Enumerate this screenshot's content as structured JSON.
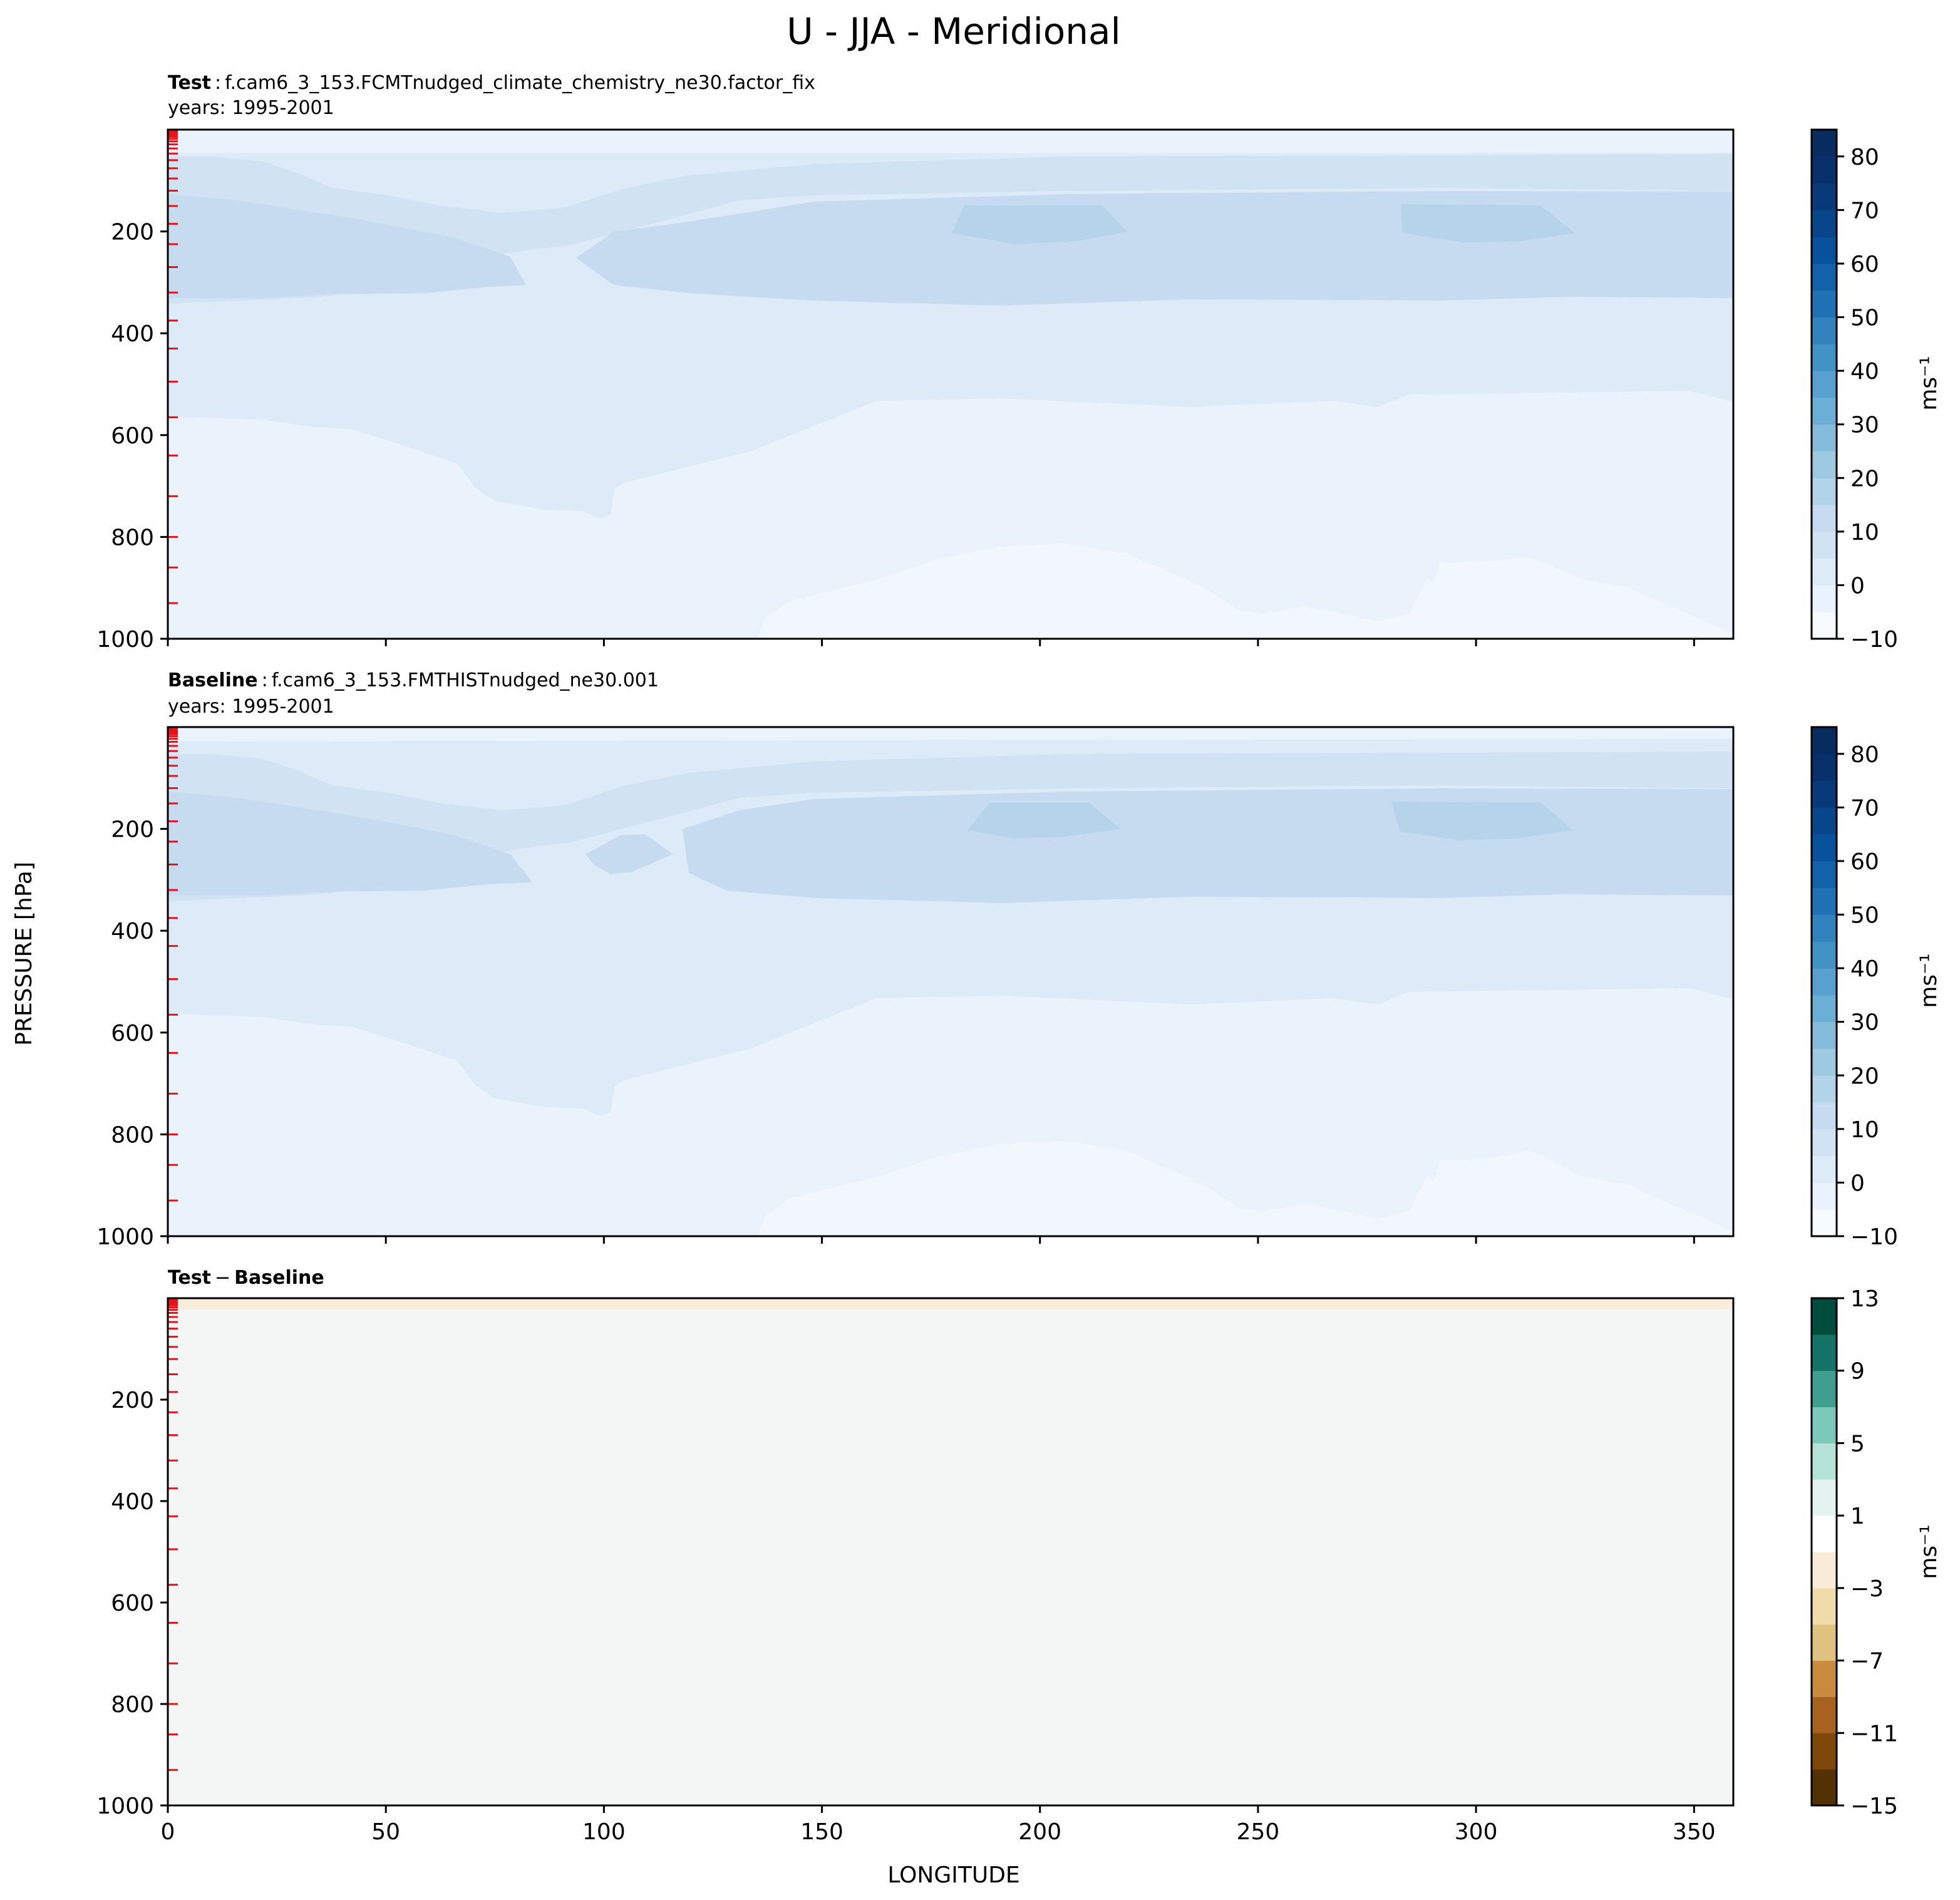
{
  "figure": {
    "title": "U - JJA - Meridional",
    "ylabel": "PRESSURE [hPa]",
    "xlabel": "LONGITUDE"
  },
  "panels": [
    {
      "label_bold": "Test",
      "label_sep": ":",
      "label_rest": "f.cam6_3_153.FCMTnudged_climate_chemistry_ne30.factor_fix",
      "years": "years: 1995-2001",
      "colorbar_unit": "ms⁻¹",
      "colorbar_ticks": [
        "80",
        "70",
        "60",
        "50",
        "40",
        "30",
        "20",
        "10",
        "0",
        "−10"
      ]
    },
    {
      "label_bold": "Baseline",
      "label_sep": ":",
      "label_rest": "f.cam6_3_153.FMTHISTnudged_ne30.001",
      "years": "years: 1995-2001",
      "colorbar_unit": "ms⁻¹",
      "colorbar_ticks": [
        "80",
        "70",
        "60",
        "50",
        "40",
        "30",
        "20",
        "10",
        "0",
        "−10"
      ]
    },
    {
      "label_bold": "Test",
      "label_sep": "−",
      "label_rest": "Baseline",
      "colorbar_unit": "ms⁻¹",
      "colorbar_ticks": [
        "13",
        "9",
        "5",
        "1",
        "−3",
        "−7",
        "−11",
        "−15"
      ]
    }
  ],
  "chart_data": [
    {
      "type": "heatmap",
      "title": "Test : f.cam6_3_153.FCMTnudged_climate_chemistry_ne30.factor_fix",
      "xlim": [
        0,
        359
      ],
      "ylim": [
        1000,
        0
      ],
      "xticks": [
        "0",
        "50",
        "100",
        "150",
        "200",
        "250",
        "300",
        "350"
      ],
      "yticks": [
        "200",
        "400",
        "600",
        "800",
        "1000"
      ],
      "colorbar": {
        "levels": [
          -10,
          -5,
          0,
          5,
          10,
          15,
          20,
          25,
          30,
          35,
          40,
          45,
          50,
          55,
          60,
          65,
          70,
          75,
          80,
          85
        ]
      },
      "colors": {
        "c0": "#eaf2fb",
        "c5": "#ddeaf7",
        "c10": "#d1e2f3",
        "c15": "#c6dbef",
        "c20": "#b6d4e9"
      }
    },
    {
      "type": "heatmap",
      "title": "Baseline : f.cam6_3_153.FMTHISTnudged_ne30.001",
      "xlim": [
        0,
        359
      ],
      "ylim": [
        1000,
        0
      ],
      "xticks": [
        "0",
        "50",
        "100",
        "150",
        "200",
        "250",
        "300",
        "350"
      ],
      "yticks": [
        "200",
        "400",
        "600",
        "800",
        "1000"
      ],
      "colorbar": {
        "levels": [
          -10,
          -5,
          0,
          5,
          10,
          15,
          20,
          25,
          30,
          35,
          40,
          45,
          50,
          55,
          60,
          65,
          70,
          75,
          80,
          85
        ]
      },
      "colors": {
        "c0": "#eaf2fb",
        "c5": "#ddeaf7",
        "c10": "#d1e2f3",
        "c15": "#c6dbef",
        "c20": "#b6d4e9"
      }
    },
    {
      "type": "heatmap",
      "title": "Test − Baseline",
      "xlim": [
        0,
        359
      ],
      "ylim": [
        1000,
        0
      ],
      "xticks": [
        "0",
        "50",
        "100",
        "150",
        "200",
        "250",
        "300",
        "350"
      ],
      "yticks": [
        "200",
        "400",
        "600",
        "800",
        "1000"
      ],
      "colorbar": {
        "levels": [
          -15,
          -13,
          -11,
          -9,
          -7,
          -5,
          -3,
          -1,
          1,
          3,
          5,
          7,
          9,
          11,
          13
        ]
      },
      "colors": {
        "background": "#f4f5f5",
        "top_band": "#f8ecdb"
      }
    }
  ],
  "colorbar_colors": {
    "blues": [
      "#f7fbff",
      "#eaf2fb",
      "#ddeaf7",
      "#d1e2f3",
      "#c6dbef",
      "#b3d3e8",
      "#9dc9e1",
      "#85bcdc",
      "#6baed6",
      "#57a0cf",
      "#4292c6",
      "#3282be",
      "#2171b5",
      "#1361a9",
      "#08519c",
      "#08458a",
      "#083a7a",
      "#08306b",
      "#082c60"
    ],
    "brbg": [
      "#543005",
      "#7f470a",
      "#a76120",
      "#c98b3e",
      "#dfc27d",
      "#f0dcaa",
      "#f8ecd8",
      "#ffffff",
      "#e4f3ef",
      "#b5e3d7",
      "#7bc9b8",
      "#3f9e8f",
      "#137467",
      "#004d3e"
    ]
  }
}
